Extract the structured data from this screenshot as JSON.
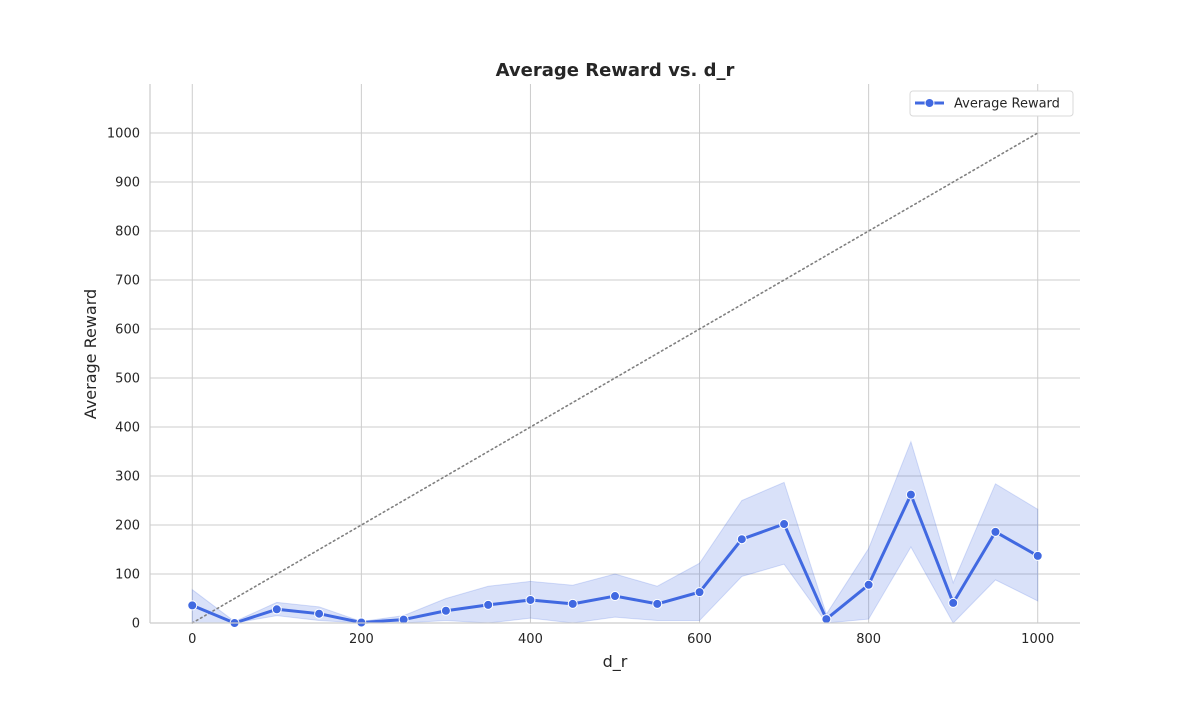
{
  "chart_data": {
    "type": "line",
    "title": "Average Reward vs. d_r",
    "xlabel": "d_r",
    "ylabel": "Average Reward",
    "xlim": [
      -50,
      1050
    ],
    "ylim": [
      0,
      1100
    ],
    "xticks": [
      "0",
      "200",
      "400",
      "600",
      "800",
      "1000"
    ],
    "yticks": [
      "0",
      "100",
      "200",
      "300",
      "400",
      "500",
      "600",
      "700",
      "800",
      "900",
      "1000"
    ],
    "grid": true,
    "legend": {
      "position": "top-right",
      "entries": [
        "Average Reward"
      ]
    },
    "x": [
      0,
      50,
      100,
      150,
      200,
      250,
      300,
      350,
      400,
      450,
      500,
      550,
      600,
      650,
      700,
      750,
      800,
      850,
      900,
      950,
      1000
    ],
    "series": [
      {
        "name": "Average Reward",
        "color": "#4169e1",
        "values": [
          36,
          0,
          28,
          19,
          1,
          7,
          25,
          37,
          47,
          39,
          55,
          39,
          63,
          171,
          202,
          8,
          78,
          262,
          41,
          186,
          137
        ],
        "ci_lower": [
          0,
          0,
          15,
          5,
          0,
          0,
          5,
          0,
          10,
          0,
          12,
          5,
          5,
          95,
          120,
          0,
          8,
          155,
          0,
          88,
          45
        ],
        "ci_upper": [
          68,
          3,
          42,
          33,
          3,
          15,
          50,
          75,
          85,
          77,
          100,
          75,
          122,
          250,
          287,
          18,
          152,
          370,
          82,
          284,
          232
        ]
      }
    ],
    "reference_line": {
      "style": "dotted",
      "color": "#808080",
      "x": [
        0,
        1000
      ],
      "y": [
        0,
        1000
      ]
    }
  }
}
